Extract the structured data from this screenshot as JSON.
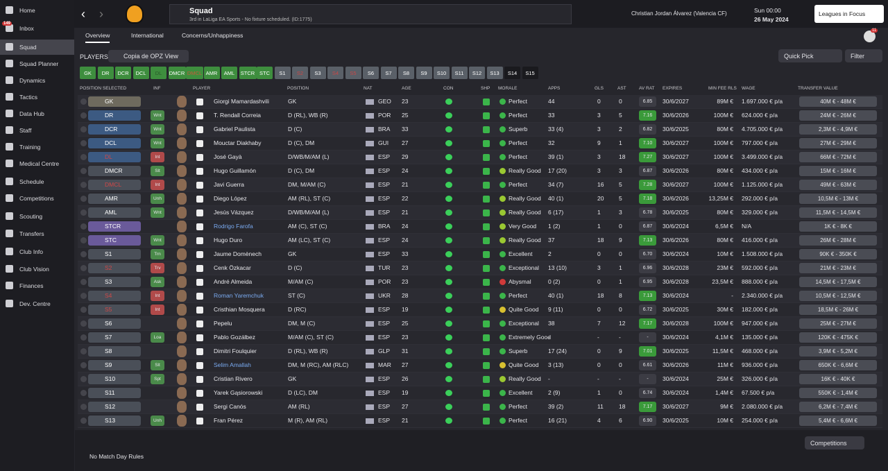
{
  "sidebar": {
    "items": [
      {
        "label": "Home"
      },
      {
        "label": "Inbox",
        "badge": "149"
      },
      {
        "label": "Squad"
      },
      {
        "label": "Squad Planner"
      },
      {
        "label": "Dynamics"
      },
      {
        "label": "Tactics"
      },
      {
        "label": "Data Hub"
      },
      {
        "label": "Staff"
      },
      {
        "label": "Training"
      },
      {
        "label": "Medical Centre"
      },
      {
        "label": "Schedule"
      },
      {
        "label": "Competitions"
      },
      {
        "label": "Scouting"
      },
      {
        "label": "Transfers"
      },
      {
        "label": "Club Info"
      },
      {
        "label": "Club Vision"
      },
      {
        "label": "Finances"
      },
      {
        "label": "Dev. Centre"
      }
    ]
  },
  "header": {
    "title": "Squad",
    "subtitle": "3rd in LaLiga EA Sports - No fixture scheduled. (ID:1775)",
    "manager": "Christian Jordan Álvarez (Valencia CF)",
    "time": "Sun 00:00",
    "date": "26 May 2024",
    "focus_button": "Leagues in Focus",
    "notif_badge": "11"
  },
  "tabs": [
    "Overview",
    "International",
    "Concerns/Unhappiness"
  ],
  "toolbar": {
    "label": "PLAYERS",
    "view": "Copia de OPZ View",
    "quick_pick": "Quick Pick",
    "filter": "Filter"
  },
  "position_chips": [
    {
      "label": "GK",
      "color": "#3e8e3e"
    },
    {
      "label": "DR",
      "color": "#3e8e3e"
    },
    {
      "label": "DCR",
      "color": "#3e8e3e"
    },
    {
      "label": "DCL",
      "color": "#3e8e3e"
    },
    {
      "label": "DL",
      "color": "#3e8e3e",
      "text_color": "#2a5a2a"
    },
    {
      "label": "DMCR",
      "color": "#3e8e3e"
    },
    {
      "label": "DMCL",
      "color": "#3e8e3e",
      "text_color": "#c85a3a"
    },
    {
      "label": "AMR",
      "color": "#3e8e3e"
    },
    {
      "label": "AML",
      "color": "#3e8e3e"
    },
    {
      "label": "STCR",
      "color": "#3e8e3e"
    },
    {
      "label": "STC",
      "color": "#3e8e3e"
    },
    {
      "label": "S1",
      "color": "#5a6068"
    },
    {
      "label": "S2",
      "color": "#5a6068",
      "text_color": "#c84848"
    },
    {
      "label": "S3",
      "color": "#5a6068"
    },
    {
      "label": "S4",
      "color": "#5a6068",
      "text_color": "#c84848"
    },
    {
      "label": "S5",
      "color": "#5a6068",
      "text_color": "#c84848"
    },
    {
      "label": "S6",
      "color": "#5a6068"
    },
    {
      "label": "S7",
      "color": "#5a6068"
    },
    {
      "label": "S8",
      "color": "#5a6068"
    },
    {
      "label": "S9",
      "color": "#5a6068"
    },
    {
      "label": "S10",
      "color": "#5a6068"
    },
    {
      "label": "S11",
      "color": "#5a6068"
    },
    {
      "label": "S12",
      "color": "#5a6068"
    },
    {
      "label": "S13",
      "color": "#5a6068"
    },
    {
      "label": "S14",
      "color": "#1a1a1e"
    },
    {
      "label": "S15",
      "color": "#1a1a1e"
    }
  ],
  "table": {
    "headers": [
      "POSITION SELECTED",
      "INF",
      "PLAYER",
      "POSITION",
      "NAT",
      "AGE",
      "CON",
      "SHP",
      "MORALE",
      "APPS",
      "GLS",
      "AST",
      "AV RAT",
      "EXPIRES",
      "MIN FEE RLS",
      "WAGE",
      "TRANSFER VALUE"
    ],
    "rows": [
      {
        "pos": "GK",
        "pos_color": "#6e6a5e",
        "name": "Giorgi Mamardashvili",
        "position": "GK",
        "nat": "GEO",
        "age": 23,
        "morale": "Perfect",
        "morale_color": "#3bb54a",
        "apps": "44",
        "gls": "0",
        "ast": "0",
        "rat": "6.85",
        "expires": "30/6/2027",
        "fee": "89M €",
        "wage": "1.697.000 € p/a",
        "value": "40M € - 48M €"
      },
      {
        "pos": "DR",
        "pos_color": "#3c5a82",
        "inf": "Wnt",
        "inf_color": "#4a8a4a",
        "name": "T. Rendall Correia",
        "position": "D (RL), WB (R)",
        "nat": "POR",
        "age": 25,
        "morale": "Perfect",
        "morale_color": "#3bb54a",
        "apps": "33",
        "gls": "3",
        "ast": "5",
        "rat": "7.16",
        "expires": "30/6/2026",
        "fee": "100M €",
        "wage": "624.000 € p/a",
        "value": "24M € - 26M €"
      },
      {
        "pos": "DCR",
        "pos_color": "#3c5a82",
        "inf": "Wnt",
        "inf_color": "#4a8a4a",
        "name": "Gabriel Paulista",
        "position": "D (C)",
        "nat": "BRA",
        "age": 33,
        "morale": "Superb",
        "morale_color": "#3bb54a",
        "apps": "33 (4)",
        "gls": "3",
        "ast": "2",
        "rat": "6.82",
        "expires": "30/6/2025",
        "fee": "80M €",
        "wage": "4.705.000 € p/a",
        "value": "2,3M € - 4,9M €"
      },
      {
        "pos": "DCL",
        "pos_color": "#3c5a82",
        "inf": "Wnt",
        "inf_color": "#4a8a4a",
        "name": "Mouctar Diakhaby",
        "position": "D (C), DM",
        "nat": "GUI",
        "age": 27,
        "morale": "Perfect",
        "morale_color": "#3bb54a",
        "apps": "32",
        "gls": "9",
        "ast": "1",
        "rat": "7.10",
        "expires": "30/6/2027",
        "fee": "100M €",
        "wage": "797.000 € p/a",
        "value": "27M € - 29M €"
      },
      {
        "pos": "DL",
        "pos_color": "#3c5a82",
        "pos_text_color": "#d04848",
        "inf": "Int",
        "inf_color": "#b04a4a",
        "name": "José Gayà",
        "position": "D/WB/M/AM (L)",
        "nat": "ESP",
        "age": 29,
        "morale": "Perfect",
        "morale_color": "#3bb54a",
        "apps": "39 (1)",
        "gls": "3",
        "ast": "18",
        "rat": "7.27",
        "expires": "30/6/2027",
        "fee": "100M €",
        "wage": "3.499.000 € p/a",
        "value": "66M € - 72M €"
      },
      {
        "pos": "DMCR",
        "pos_color": "#4a4f58",
        "inf": "Slt",
        "inf_color": "#4a8a4a",
        "name": "Hugo Guillamón",
        "position": "D (C), DM",
        "nat": "ESP",
        "age": 24,
        "morale": "Really Good",
        "morale_color": "#9ac832",
        "apps": "17 (20)",
        "gls": "3",
        "ast": "3",
        "rat": "6.87",
        "expires": "30/6/2026",
        "fee": "80M €",
        "wage": "434.000 € p/a",
        "value": "15M € - 16M €"
      },
      {
        "pos": "DMCL",
        "pos_color": "#4a4f58",
        "pos_text_color": "#d04848",
        "inf": "Int",
        "inf_color": "#b04a4a",
        "name": "Javi Guerra",
        "position": "DM, M/AM (C)",
        "nat": "ESP",
        "age": 21,
        "morale": "Perfect",
        "morale_color": "#3bb54a",
        "apps": "34 (7)",
        "gls": "16",
        "ast": "5",
        "rat": "7.28",
        "expires": "30/6/2027",
        "fee": "100M €",
        "wage": "1.125.000 € p/a",
        "value": "49M € - 63M €"
      },
      {
        "pos": "AMR",
        "pos_color": "#4a4f58",
        "inf": "Unh",
        "inf_color": "#4a8a4a",
        "name": "Diego López",
        "position": "AM (RL), ST (C)",
        "nat": "ESP",
        "age": 22,
        "morale": "Really Good",
        "morale_color": "#9ac832",
        "apps": "40 (1)",
        "gls": "20",
        "ast": "5",
        "rat": "7.18",
        "expires": "30/6/2026",
        "fee": "13,25M €",
        "wage": "292.000 € p/a",
        "value": "10,5M € - 13M €"
      },
      {
        "pos": "AML",
        "pos_color": "#4a4f58",
        "inf": "Wnt",
        "inf_color": "#4a8a4a",
        "name": "Jesús Vázquez",
        "position": "D/WB/M/AM (L)",
        "nat": "ESP",
        "age": 21,
        "morale": "Really Good",
        "morale_color": "#9ac832",
        "apps": "6 (17)",
        "gls": "1",
        "ast": "3",
        "rat": "6.78",
        "expires": "30/6/2025",
        "fee": "80M €",
        "wage": "329.000 € p/a",
        "value": "11,5M € - 14,5M €"
      },
      {
        "pos": "STCR",
        "pos_color": "#6a5a9a",
        "name": "Rodrigo Farofa",
        "name_color": "#7aaaf0",
        "position": "AM (C), ST (C)",
        "nat": "BRA",
        "age": 24,
        "morale": "Very Good",
        "morale_color": "#9ac832",
        "apps": "1 (2)",
        "gls": "1",
        "ast": "0",
        "rat": "6.87",
        "expires": "30/6/2024",
        "fee": "6,5M €",
        "wage": "N/A",
        "value": "1K € - 8K €"
      },
      {
        "pos": "STC",
        "pos_color": "#6a5a9a",
        "inf": "Wnt",
        "inf_color": "#4a8a4a",
        "name": "Hugo Duro",
        "position": "AM (LC), ST (C)",
        "nat": "ESP",
        "age": 24,
        "morale": "Really Good",
        "morale_color": "#9ac832",
        "apps": "37",
        "gls": "18",
        "ast": "9",
        "rat": "7.13",
        "expires": "30/6/2026",
        "fee": "80M €",
        "wage": "416.000 € p/a",
        "value": "26M € - 28M €"
      },
      {
        "pos": "S1",
        "pos_color": "#4a4f58",
        "inf": "Trn",
        "inf_color": "#4a8a4a",
        "name": "Jaume Domènech",
        "position": "GK",
        "nat": "ESP",
        "age": 33,
        "morale": "Excellent",
        "morale_color": "#3bb54a",
        "apps": "2",
        "gls": "0",
        "ast": "0",
        "rat": "6.70",
        "expires": "30/6/2024",
        "fee": "10M €",
        "wage": "1.508.000 € p/a",
        "value": "90K € - 350K €"
      },
      {
        "pos": "S2",
        "pos_color": "#4a4f58",
        "pos_text_color": "#d04848",
        "inf": "Trv",
        "inf_color": "#b04a4a",
        "name": "Cenk Özkacar",
        "position": "D (C)",
        "nat": "TUR",
        "age": 23,
        "morale": "Exceptional",
        "morale_color": "#3bb54a",
        "apps": "13 (10)",
        "gls": "3",
        "ast": "1",
        "rat": "6.96",
        "expires": "30/6/2028",
        "fee": "23M €",
        "wage": "592.000 € p/a",
        "value": "21M € - 23M €"
      },
      {
        "pos": "S3",
        "pos_color": "#4a4f58",
        "inf": "Ask",
        "inf_color": "#4a8a4a",
        "name": "André Almeida",
        "position": "M/AM (C)",
        "nat": "POR",
        "age": 23,
        "morale": "Abysmal",
        "morale_color": "#d03a3a",
        "apps": "0 (2)",
        "gls": "0",
        "ast": "1",
        "rat": "6.95",
        "expires": "30/6/2028",
        "fee": "23,5M €",
        "wage": "888.000 € p/a",
        "value": "14,5M € - 17,5M €"
      },
      {
        "pos": "S4",
        "pos_color": "#4a4f58",
        "pos_text_color": "#d04848",
        "inf": "Int",
        "inf_color": "#b04a4a",
        "name": "Roman Yaremchuk",
        "name_color": "#7aaaf0",
        "position": "ST (C)",
        "nat": "UKR",
        "age": 28,
        "morale": "Perfect",
        "morale_color": "#3bb54a",
        "apps": "40 (1)",
        "gls": "18",
        "ast": "8",
        "rat": "7.13",
        "expires": "30/6/2024",
        "fee": "-",
        "wage": "2.340.000 € p/a",
        "value": "10,5M € - 12,5M €"
      },
      {
        "pos": "S5",
        "pos_color": "#4a4f58",
        "pos_text_color": "#d04848",
        "inf": "Int",
        "inf_color": "#b04a4a",
        "name": "Cristhian Mosquera",
        "position": "D (RC)",
        "nat": "ESP",
        "age": 19,
        "morale": "Quite Good",
        "morale_color": "#d8c030",
        "apps": "9 (11)",
        "gls": "0",
        "ast": "0",
        "rat": "6.72",
        "expires": "30/6/2025",
        "fee": "30M €",
        "wage": "182.000 € p/a",
        "value": "18,5M € - 26M €"
      },
      {
        "pos": "S6",
        "pos_color": "#4a4f58",
        "name": "Pepelu",
        "position": "DM, M (C)",
        "nat": "ESP",
        "age": 25,
        "morale": "Exceptional",
        "morale_color": "#3bb54a",
        "apps": "38",
        "gls": "7",
        "ast": "12",
        "rat": "7.17",
        "expires": "30/6/2028",
        "fee": "100M €",
        "wage": "947.000 € p/a",
        "value": "25M € - 27M €"
      },
      {
        "pos": "S7",
        "pos_color": "#4a4f58",
        "inf": "Loa",
        "inf_color": "#4a8a4a",
        "name": "Pablo Gozálbez",
        "position": "M/AM (C), ST (C)",
        "nat": "ESP",
        "age": 23,
        "morale": "Extremely Good",
        "morale_color": "#3bb54a",
        "apps": "-",
        "gls": "-",
        "ast": "-",
        "rat": "-",
        "expires": "30/6/2024",
        "fee": "4,1M €",
        "wage": "135.000 € p/a",
        "value": "120K € - 475K €"
      },
      {
        "pos": "S8",
        "pos_color": "#4a4f58",
        "name": "Dimitri Foulquier",
        "position": "D (RL), WB (R)",
        "nat": "GLP",
        "age": 31,
        "morale": "Superb",
        "morale_color": "#3bb54a",
        "apps": "17 (24)",
        "gls": "0",
        "ast": "9",
        "rat": "7.01",
        "expires": "30/6/2025",
        "fee": "11,5M €",
        "wage": "468.000 € p/a",
        "value": "3,9M € - 5,2M €"
      },
      {
        "pos": "S9",
        "pos_color": "#4a4f58",
        "inf": "Slt",
        "inf_color": "#4a8a4a",
        "name": "Selim Amallah",
        "name_color": "#7aaaf0",
        "position": "DM, M (RC), AM (RLC)",
        "nat": "MAR",
        "age": 27,
        "morale": "Quite Good",
        "morale_color": "#d8c030",
        "apps": "3 (13)",
        "gls": "0",
        "ast": "0",
        "rat": "6.61",
        "expires": "30/6/2026",
        "fee": "11M €",
        "wage": "936.000 € p/a",
        "value": "650K € - 6,6M €"
      },
      {
        "pos": "S10",
        "pos_color": "#4a4f58",
        "inf": "Spt",
        "inf_color": "#4a8a4a",
        "name": "Cristian Rivero",
        "position": "GK",
        "nat": "ESP",
        "age": 26,
        "morale": "Really Good",
        "morale_color": "#9ac832",
        "apps": "-",
        "gls": "-",
        "ast": "-",
        "rat": "-",
        "expires": "30/6/2024",
        "fee": "25M €",
        "wage": "326.000 € p/a",
        "value": "16K € - 40K €"
      },
      {
        "pos": "S11",
        "pos_color": "#4a4f58",
        "name": "Yarek Gąsiorowski",
        "position": "D (LC), DM",
        "nat": "ESP",
        "age": 19,
        "morale": "Excellent",
        "morale_color": "#3bb54a",
        "apps": "2 (9)",
        "gls": "1",
        "ast": "0",
        "rat": "6.74",
        "expires": "30/6/2024",
        "fee": "1,4M €",
        "wage": "67.500 € p/a",
        "value": "550K € - 1,4M €"
      },
      {
        "pos": "S12",
        "pos_color": "#4a4f58",
        "name": "Sergi Canós",
        "position": "AM (RL)",
        "nat": "ESP",
        "age": 27,
        "morale": "Perfect",
        "morale_color": "#3bb54a",
        "apps": "39 (2)",
        "gls": "11",
        "ast": "18",
        "rat": "7.17",
        "expires": "30/6/2027",
        "fee": "9M €",
        "wage": "2.080.000 € p/a",
        "value": "6,2M € - 7,4M €"
      },
      {
        "pos": "S13",
        "pos_color": "#4a4f58",
        "inf": "Unh",
        "inf_color": "#4a8a4a",
        "name": "Fran Pérez",
        "position": "M (R), AM (RL)",
        "nat": "ESP",
        "age": 21,
        "morale": "Perfect",
        "morale_color": "#3bb54a",
        "apps": "16 (21)",
        "gls": "4",
        "ast": "6",
        "rat": "6.90",
        "expires": "30/6/2025",
        "fee": "10M €",
        "wage": "254.000 € p/a",
        "value": "5,4M € - 6,6M €"
      }
    ]
  },
  "footer": {
    "rules": "No Match Day Rules",
    "competitions": "Competitions"
  }
}
